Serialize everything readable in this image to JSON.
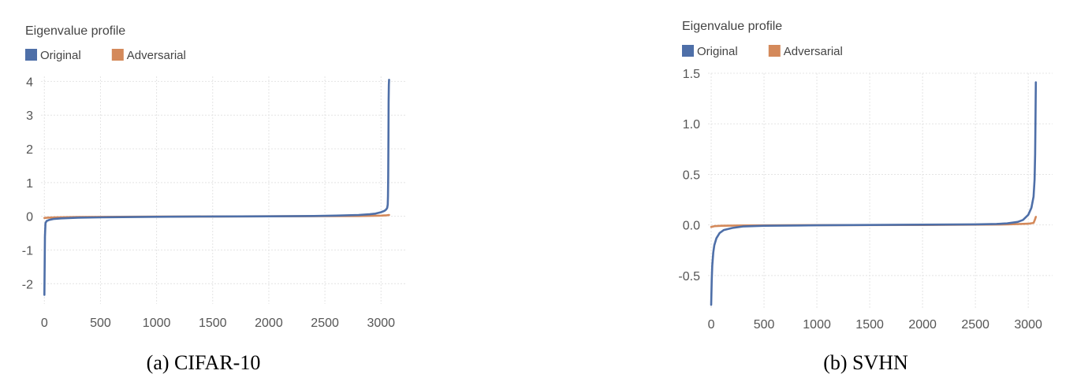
{
  "chart_data": [
    {
      "type": "line",
      "title": "Eigenvalue profile",
      "caption": "(a) CIFAR-10",
      "xlabel": "",
      "ylabel": "",
      "xlim": [
        -30,
        3230
      ],
      "ylim": [
        -2.6,
        4.15
      ],
      "xticks": [
        0,
        500,
        1000,
        1500,
        2000,
        2500,
        3000
      ],
      "yticks": [
        -2,
        -1,
        0,
        1,
        2,
        3,
        4
      ],
      "grid": true,
      "legend_position": "top-left",
      "series": [
        {
          "name": "Original",
          "color": "#4e6fa8",
          "x": [
            0,
            2,
            5,
            10,
            20,
            40,
            80,
            150,
            300,
            600,
            1000,
            1500,
            2000,
            2400,
            2600,
            2800,
            2900,
            2950,
            3000,
            3030,
            3045,
            3055,
            3060,
            3062,
            3064,
            3066,
            3068,
            3070,
            3072
          ],
          "y": [
            -2.33,
            -1.6,
            -0.6,
            -0.2,
            -0.14,
            -0.11,
            -0.08,
            -0.06,
            -0.04,
            -0.025,
            -0.015,
            -0.005,
            0.0,
            0.01,
            0.02,
            0.04,
            0.06,
            0.08,
            0.12,
            0.16,
            0.2,
            0.25,
            0.35,
            0.6,
            1.2,
            2.4,
            3.4,
            3.9,
            4.05
          ]
        },
        {
          "name": "Adversarial",
          "color": "#d4895a",
          "x": [
            0,
            30,
            100,
            300,
            1000,
            2000,
            2800,
            3000,
            3050,
            3072
          ],
          "y": [
            -0.05,
            -0.04,
            -0.03,
            -0.02,
            -0.01,
            0.0,
            0.01,
            0.02,
            0.03,
            0.04
          ]
        }
      ]
    },
    {
      "type": "line",
      "title": "Eigenvalue profile",
      "caption": "(b) SVHN",
      "xlabel": "",
      "ylabel": "",
      "xlim": [
        -30,
        3230
      ],
      "ylim": [
        -0.82,
        1.5
      ],
      "xticks": [
        0,
        500,
        1000,
        1500,
        2000,
        2500,
        3000
      ],
      "yticks": [
        -0.5,
        0.0,
        0.5,
        1.0,
        1.5
      ],
      "ytick_labels": [
        "-0.5",
        "0.0",
        "0.5",
        "1.0",
        "1.5"
      ],
      "grid": true,
      "legend_position": "top-left",
      "series": [
        {
          "name": "Original",
          "color": "#4e6fa8",
          "x": [
            0,
            5,
            10,
            20,
            30,
            50,
            80,
            120,
            200,
            300,
            500,
            1000,
            1500,
            2000,
            2500,
            2700,
            2800,
            2900,
            2950,
            3000,
            3030,
            3050,
            3060,
            3065,
            3068,
            3070,
            3072
          ],
          "y": [
            -0.79,
            -0.55,
            -0.4,
            -0.27,
            -0.2,
            -0.13,
            -0.08,
            -0.05,
            -0.03,
            -0.015,
            -0.008,
            -0.003,
            0.0,
            0.003,
            0.006,
            0.01,
            0.015,
            0.03,
            0.05,
            0.1,
            0.17,
            0.28,
            0.45,
            0.7,
            1.0,
            1.25,
            1.41
          ]
        },
        {
          "name": "Adversarial",
          "color": "#d4895a",
          "x": [
            0,
            30,
            100,
            300,
            1000,
            2000,
            2800,
            3000,
            3050,
            3062,
            3072
          ],
          "y": [
            -0.02,
            -0.012,
            -0.008,
            -0.005,
            -0.002,
            0.0,
            0.005,
            0.012,
            0.02,
            0.05,
            0.08
          ]
        }
      ]
    }
  ]
}
